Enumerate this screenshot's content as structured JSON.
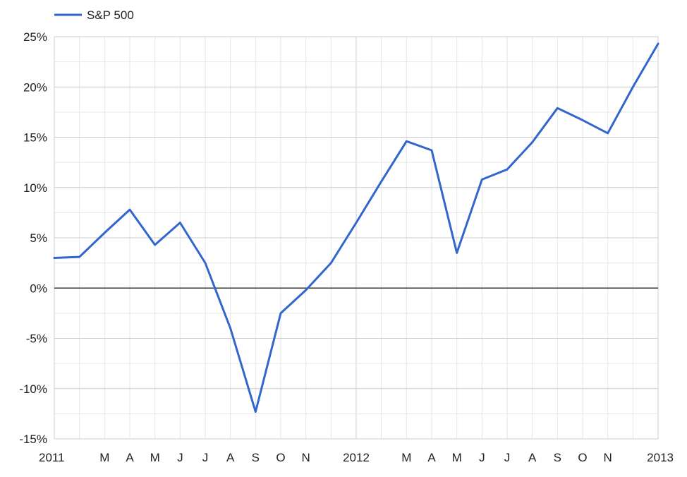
{
  "chart_data": {
    "type": "line",
    "title": "",
    "xlabel": "",
    "ylabel": "",
    "ylim": [
      -15,
      25
    ],
    "y_ticks": [
      -15,
      -10,
      -5,
      0,
      5,
      10,
      15,
      20,
      25
    ],
    "y_tick_labels": [
      "-15%",
      "-10%",
      "-5%",
      "0%",
      "5%",
      "10%",
      "15%",
      "20%",
      "25%"
    ],
    "x": [
      "2011-01",
      "2011-02",
      "2011-03",
      "2011-04",
      "2011-05",
      "2011-06",
      "2011-07",
      "2011-08",
      "2011-09",
      "2011-10",
      "2011-11",
      "2011-12",
      "2012-01",
      "2012-02",
      "2012-03",
      "2012-04",
      "2012-05",
      "2012-06",
      "2012-07",
      "2012-08",
      "2012-09",
      "2012-10",
      "2012-11",
      "2012-12",
      "2013-01"
    ],
    "x_tick_labels": [
      "2011",
      "",
      "M",
      "A",
      "M",
      "J",
      "J",
      "A",
      "S",
      "O",
      "N",
      "",
      "2012",
      "",
      "M",
      "A",
      "M",
      "J",
      "J",
      "A",
      "S",
      "O",
      "N",
      "",
      "2013"
    ],
    "major_x_ticks": [
      "2011",
      "2012",
      "2013"
    ],
    "grid": true,
    "legend_position": "top-left",
    "series": [
      {
        "name": "S&P 500",
        "color": "#3366cc",
        "values": [
          3.0,
          3.1,
          5.5,
          7.8,
          4.3,
          6.5,
          2.5,
          -4.0,
          -12.3,
          -2.5,
          -0.2,
          2.5,
          6.5,
          10.6,
          14.6,
          13.7,
          3.5,
          10.8,
          11.8,
          14.5,
          17.9,
          16.7,
          15.4,
          20.0,
          24.3
        ]
      }
    ],
    "colors": {
      "gridline": "#e6e6e6",
      "major_gridline": "#cccccc",
      "baseline": "#333333",
      "axis_text": "#222222"
    }
  }
}
